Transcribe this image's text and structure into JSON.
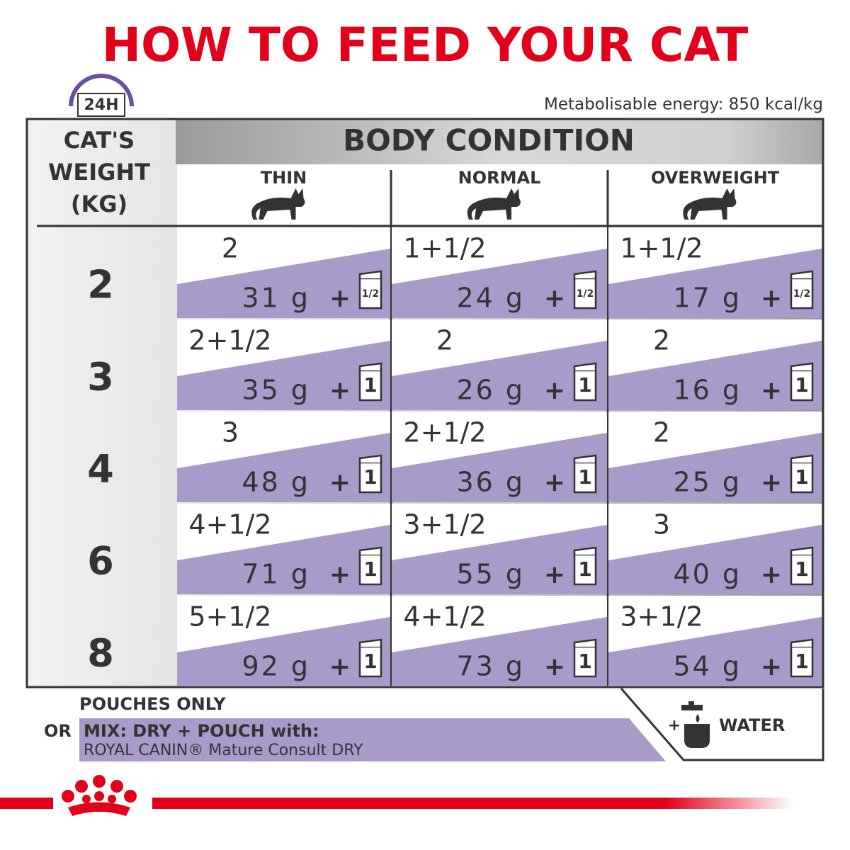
{
  "title": "HOW TO FEED YOUR CAT",
  "clock_label": "24H",
  "energy": "Metabolisable energy: 850 kcal/kg",
  "table": {
    "weight_header": [
      "CAT'S",
      "WEIGHT",
      "(KG)"
    ],
    "condition_header": "BODY CONDITION",
    "columns": [
      "THIN",
      "NORMAL",
      "OVERWEIGHT"
    ],
    "plus": "+",
    "rows": [
      {
        "weight": "2",
        "cells": [
          {
            "pouches": "2",
            "dry": "31 g",
            "icon": "1/2"
          },
          {
            "pouches": "1+1/2",
            "dry": "24 g",
            "icon": "1/2"
          },
          {
            "pouches": "1+1/2",
            "dry": "17 g",
            "icon": "1/2"
          }
        ]
      },
      {
        "weight": "3",
        "cells": [
          {
            "pouches": "2+1/2",
            "dry": "35 g",
            "icon": "1"
          },
          {
            "pouches": "2",
            "dry": "26 g",
            "icon": "1"
          },
          {
            "pouches": "2",
            "dry": "16 g",
            "icon": "1"
          }
        ]
      },
      {
        "weight": "4",
        "cells": [
          {
            "pouches": "3",
            "dry": "48 g",
            "icon": "1"
          },
          {
            "pouches": "2+1/2",
            "dry": "36 g",
            "icon": "1"
          },
          {
            "pouches": "2",
            "dry": "25 g",
            "icon": "1"
          }
        ]
      },
      {
        "weight": "6",
        "cells": [
          {
            "pouches": "4+1/2",
            "dry": "71 g",
            "icon": "1"
          },
          {
            "pouches": "3+1/2",
            "dry": "55 g",
            "icon": "1"
          },
          {
            "pouches": "3",
            "dry": "40 g",
            "icon": "1"
          }
        ]
      },
      {
        "weight": "8",
        "cells": [
          {
            "pouches": "5+1/2",
            "dry": "92 g",
            "icon": "1"
          },
          {
            "pouches": "4+1/2",
            "dry": "73 g",
            "icon": "1"
          },
          {
            "pouches": "3+1/2",
            "dry": "54 g",
            "icon": "1"
          }
        ]
      }
    ]
  },
  "footer": {
    "pouches_only": "POUCHES ONLY",
    "or": "OR",
    "mix_line1": "MIX: DRY + POUCH with:",
    "mix_line2": "ROYAL CANIN® Mature Consult DRY",
    "water_plus": "+",
    "water": "WATER"
  }
}
